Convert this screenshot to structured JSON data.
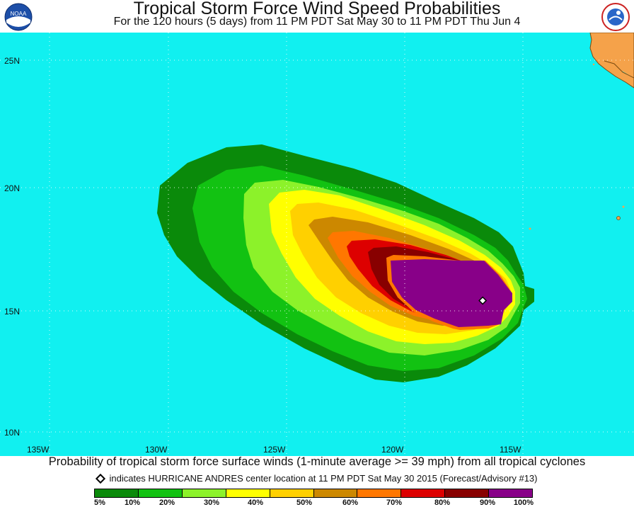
{
  "header": {
    "title": "Tropical Storm Force Wind Speed Probabilities",
    "subtitle": "For the 120 hours (5 days) from 11 PM PDT Sat May 30 to 11 PM PDT Thu Jun 4"
  },
  "logos": {
    "left": "noaa-logo",
    "left_text": "NOAA",
    "right": "nws-logo"
  },
  "map": {
    "ocean_color": "#11f0f0",
    "land_color": "#f5a24a",
    "lat_labels": [
      "25N",
      "20N",
      "15N",
      "10N"
    ],
    "lon_labels": [
      "135W",
      "130W",
      "125W",
      "120W",
      "115W"
    ]
  },
  "storm_center": {
    "lat": 15.3,
    "lon": -116.7,
    "name": "HURRICANE ANDRES"
  },
  "caption": "Probability of tropical storm force surface winds (1-minute average >= 39 mph) from all tropical cyclones",
  "marker_note": "indicates HURRICANE ANDRES center location at 11 PM PDT Sat May 30 2015 (Forecast/Advisory #13)",
  "legend": {
    "colors": [
      "#0a8a0a",
      "#12c212",
      "#8cf22a",
      "#ffff00",
      "#ffd000",
      "#cc8800",
      "#ff7700",
      "#dd0000",
      "#880000",
      "#880088"
    ],
    "labels": [
      "5%",
      "10%",
      "20%",
      "30%",
      "40%",
      "50%",
      "60%",
      "70%",
      "80%",
      "90%",
      "100%"
    ]
  }
}
